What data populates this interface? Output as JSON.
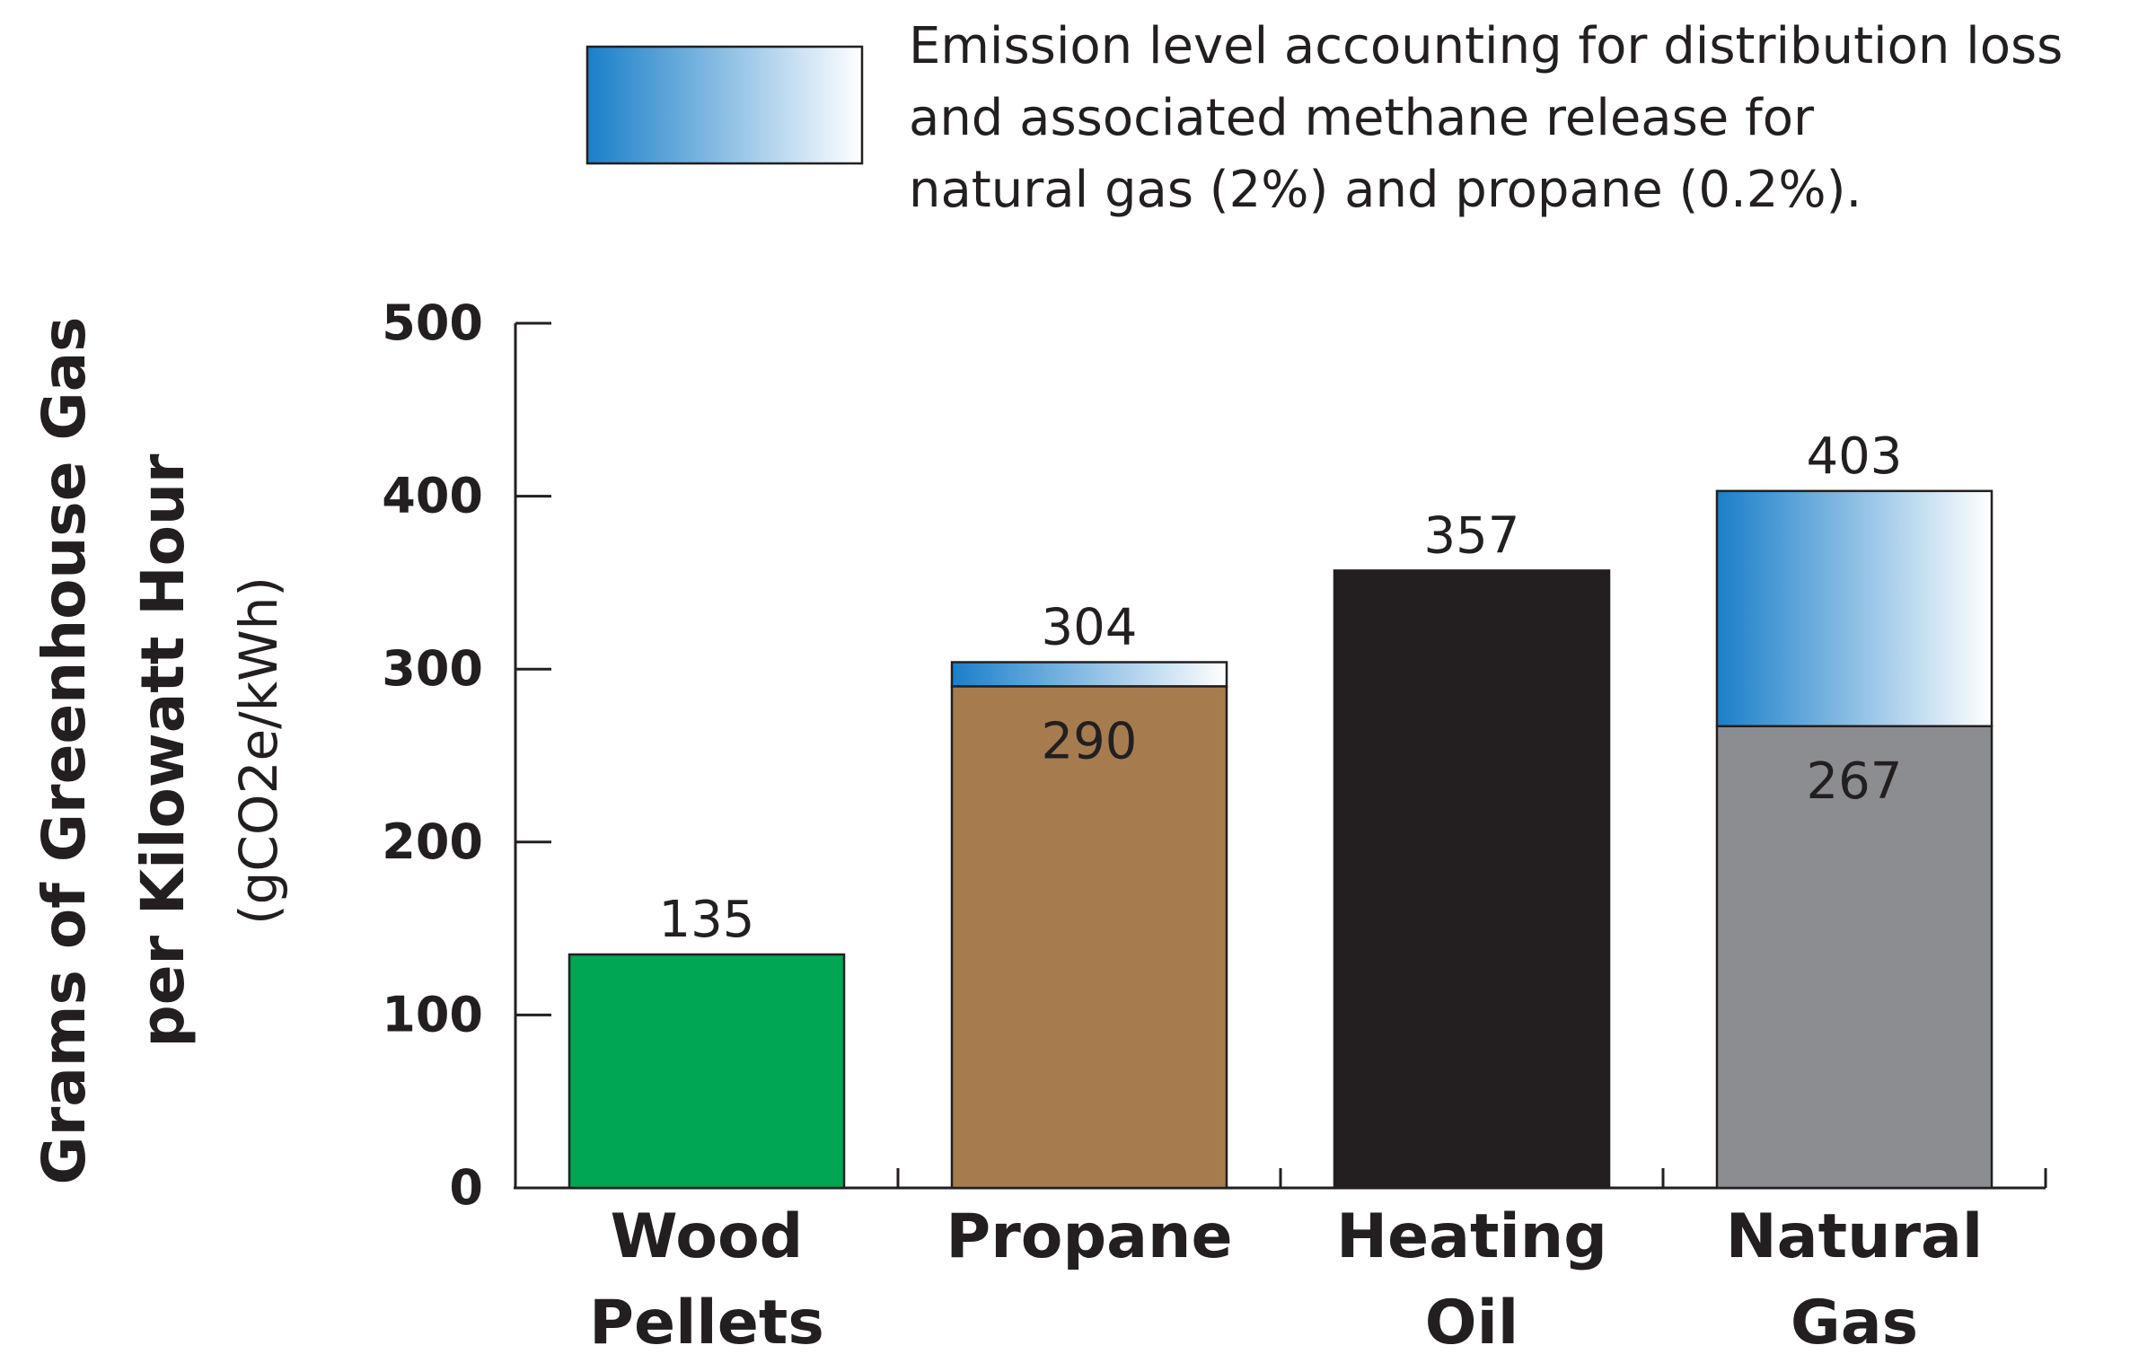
{
  "chart_data": {
    "type": "bar",
    "categories": [
      [
        "Wood",
        "Pellets"
      ],
      [
        "Propane"
      ],
      [
        "Heating",
        "Oil"
      ],
      [
        "Natural",
        "Gas"
      ]
    ],
    "base_values": [
      135,
      290,
      357,
      267
    ],
    "total_values": [
      135,
      304,
      357,
      403
    ],
    "top_labels": [
      "135",
      "304",
      "357",
      "403"
    ],
    "inner_labels": [
      "",
      "290",
      "",
      "267"
    ],
    "bar_colors": [
      "#00a651",
      "#a67c4e",
      "#231f20",
      "#8c8d90"
    ],
    "gradient_colors": [
      "#1a7fc9",
      "#ffffff"
    ],
    "ylabel_lines": [
      "Grams of Greenhouse Gas",
      "per Kilowatt Hour"
    ],
    "ylabel_unit": "(gCO2e/kWh)",
    "yticks": [
      0,
      100,
      200,
      300,
      400,
      500
    ],
    "ylim": [
      0,
      500
    ],
    "grid": false,
    "legend": {
      "placement": "top",
      "lines": [
        "Emission level accounting for distribution loss",
        "and associated methane release for",
        "natural gas (2%) and propane (0.2%)."
      ]
    }
  }
}
